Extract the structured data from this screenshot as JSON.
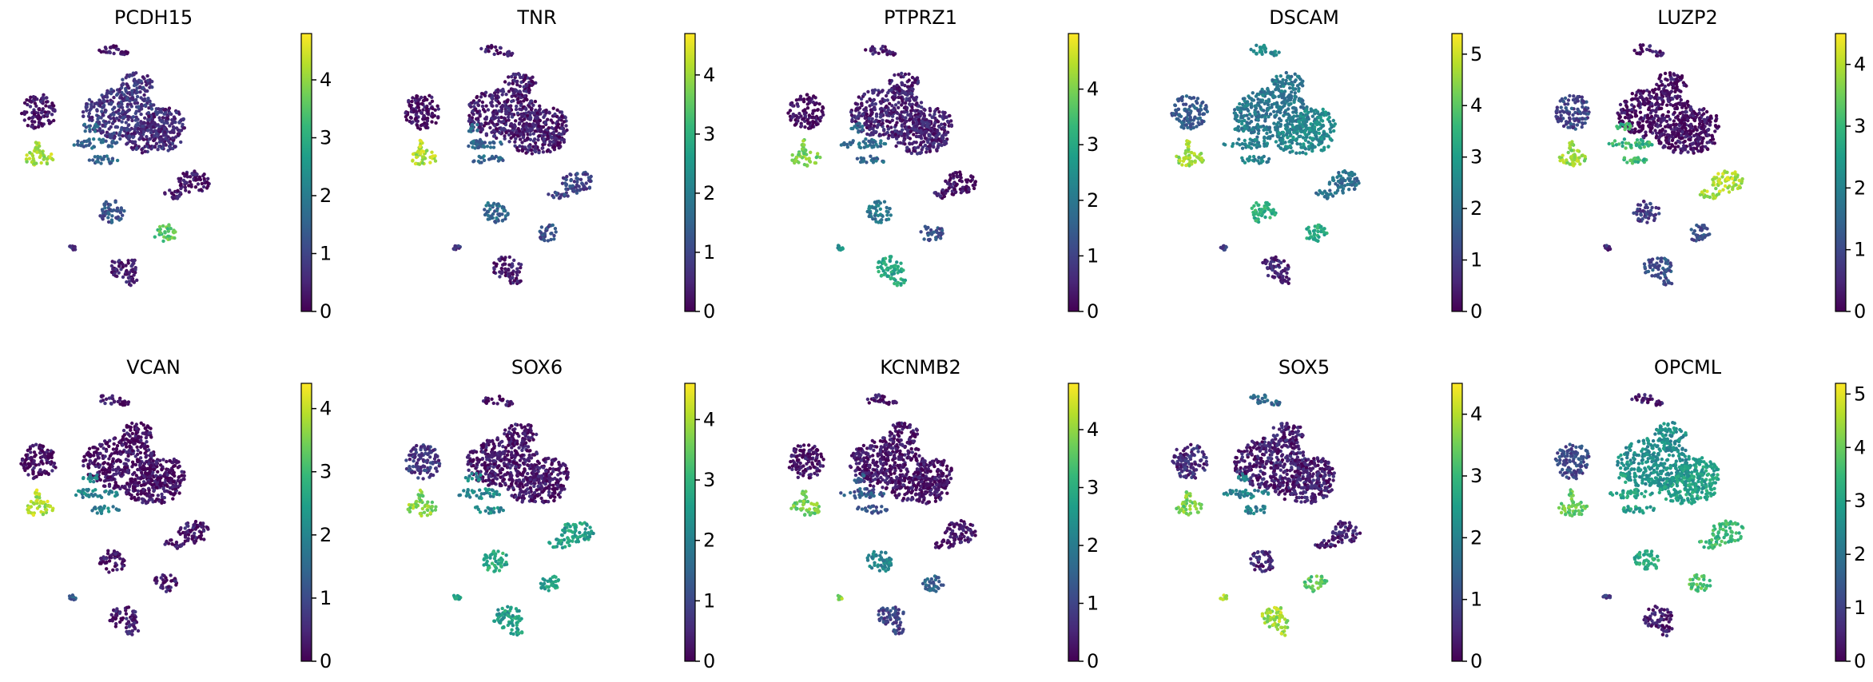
{
  "colors": {
    "viridis": [
      "#440154",
      "#482878",
      "#3e4989",
      "#31688e",
      "#26828e",
      "#1f9e89",
      "#35b779",
      "#6ece58",
      "#b5de2b",
      "#fde725"
    ]
  },
  "chart_data": [
    {
      "type": "scatter",
      "embedding": "UMAP",
      "title": "PCDH15",
      "colorbar": {
        "vmin": 0,
        "vmax": 4.8,
        "ticks": [
          0,
          1,
          2,
          3,
          4
        ]
      },
      "cluster_expression": {
        "top_island": 0.3,
        "left_blob": 0.3,
        "left_small": 4.2,
        "main_left": 0.8,
        "main_right": 0.6,
        "branches": 1.6,
        "center_small": 1.3,
        "right_blob": 0.3,
        "bottom_left_small": 0.8,
        "bottom_center": 0.4,
        "bottom_right": 3.6
      }
    },
    {
      "type": "scatter",
      "embedding": "UMAP",
      "title": "TNR",
      "colorbar": {
        "vmin": 0,
        "vmax": 4.7,
        "ticks": [
          0,
          1,
          2,
          3,
          4
        ]
      },
      "cluster_expression": {
        "top_island": 0.3,
        "left_blob": 0.2,
        "left_small": 4.2,
        "main_left": 0.4,
        "main_right": 0.4,
        "branches": 1.6,
        "center_small": 1.6,
        "right_blob": 1.0,
        "bottom_left_small": 0.8,
        "bottom_center": 0.4,
        "bottom_right": 1.2
      }
    },
    {
      "type": "scatter",
      "embedding": "UMAP",
      "title": "PTPRZ1",
      "colorbar": {
        "vmin": 0,
        "vmax": 5.0,
        "ticks": [
          0,
          1,
          2,
          3,
          4
        ]
      },
      "cluster_expression": {
        "top_island": 0.4,
        "left_blob": 0.2,
        "left_small": 4.0,
        "main_left": 0.5,
        "main_right": 0.5,
        "branches": 1.8,
        "center_small": 2.0,
        "right_blob": 0.3,
        "bottom_left_small": 2.6,
        "bottom_center": 3.0,
        "bottom_right": 1.2
      }
    },
    {
      "type": "scatter",
      "embedding": "UMAP",
      "title": "DSCAM",
      "colorbar": {
        "vmin": 0,
        "vmax": 5.4,
        "ticks": [
          0,
          1,
          2,
          3,
          4,
          5
        ]
      },
      "cluster_expression": {
        "top_island": 2.6,
        "left_blob": 1.6,
        "left_small": 4.6,
        "main_left": 2.2,
        "main_right": 2.6,
        "branches": 2.4,
        "center_small": 3.4,
        "right_blob": 2.0,
        "bottom_left_small": 1.0,
        "bottom_center": 0.6,
        "bottom_right": 3.4
      }
    },
    {
      "type": "scatter",
      "embedding": "UMAP",
      "title": "LUZP2",
      "colorbar": {
        "vmin": 0,
        "vmax": 4.5,
        "ticks": [
          0,
          1,
          2,
          3,
          4
        ]
      },
      "cluster_expression": {
        "top_island": 0.3,
        "left_blob": 1.0,
        "left_small": 3.8,
        "main_left": 0.2,
        "main_right": 0.2,
        "branches": 3.0,
        "center_small": 0.8,
        "right_blob": 4.0,
        "bottom_left_small": 0.6,
        "bottom_center": 1.2,
        "bottom_right": 1.2
      }
    },
    {
      "type": "scatter",
      "embedding": "UMAP",
      "title": "VCAN",
      "colorbar": {
        "vmin": 0,
        "vmax": 4.4,
        "ticks": [
          0,
          1,
          2,
          3,
          4
        ]
      },
      "cluster_expression": {
        "top_island": 0.3,
        "left_blob": 0.2,
        "left_small": 3.9,
        "main_left": 0.2,
        "main_right": 0.2,
        "branches": 2.0,
        "center_small": 0.3,
        "right_blob": 0.3,
        "bottom_left_small": 1.4,
        "bottom_center": 0.4,
        "bottom_right": 0.3
      }
    },
    {
      "type": "scatter",
      "embedding": "UMAP",
      "title": "SOX6",
      "colorbar": {
        "vmin": 0,
        "vmax": 4.6,
        "ticks": [
          0,
          1,
          2,
          3,
          4
        ]
      },
      "cluster_expression": {
        "top_island": 0.3,
        "left_blob": 0.8,
        "left_small": 3.8,
        "main_left": 0.3,
        "main_right": 0.3,
        "branches": 2.2,
        "center_small": 2.8,
        "right_blob": 2.6,
        "bottom_left_small": 2.8,
        "bottom_center": 2.6,
        "bottom_right": 2.6
      }
    },
    {
      "type": "scatter",
      "embedding": "UMAP",
      "title": "KCNMB2",
      "colorbar": {
        "vmin": 0,
        "vmax": 4.8,
        "ticks": [
          0,
          1,
          2,
          3,
          4
        ]
      },
      "cluster_expression": {
        "top_island": 0.3,
        "left_blob": 0.3,
        "left_small": 3.8,
        "main_left": 0.3,
        "main_right": 0.3,
        "branches": 1.4,
        "center_small": 2.2,
        "right_blob": 0.3,
        "bottom_left_small": 4.0,
        "bottom_center": 1.0,
        "bottom_right": 1.6
      }
    },
    {
      "type": "scatter",
      "embedding": "UMAP",
      "title": "SOX5",
      "colorbar": {
        "vmin": 0,
        "vmax": 4.5,
        "ticks": [
          0,
          1,
          2,
          3,
          4
        ]
      },
      "cluster_expression": {
        "top_island": 1.6,
        "left_blob": 0.6,
        "left_small": 3.6,
        "main_left": 0.4,
        "main_right": 0.4,
        "branches": 2.0,
        "center_small": 0.5,
        "right_blob": 0.4,
        "bottom_left_small": 4.0,
        "bottom_center": 3.9,
        "bottom_right": 3.4
      }
    },
    {
      "type": "scatter",
      "embedding": "UMAP",
      "title": "OPCML",
      "colorbar": {
        "vmin": 0,
        "vmax": 5.2,
        "ticks": [
          0,
          1,
          2,
          3,
          4,
          5
        ]
      },
      "cluster_expression": {
        "top_island": 0.4,
        "left_blob": 1.2,
        "left_small": 4.0,
        "main_left": 2.6,
        "main_right": 3.0,
        "branches": 3.0,
        "center_small": 3.2,
        "right_blob": 3.6,
        "bottom_left_small": 1.0,
        "bottom_center": 0.5,
        "bottom_right": 3.8
      }
    }
  ]
}
